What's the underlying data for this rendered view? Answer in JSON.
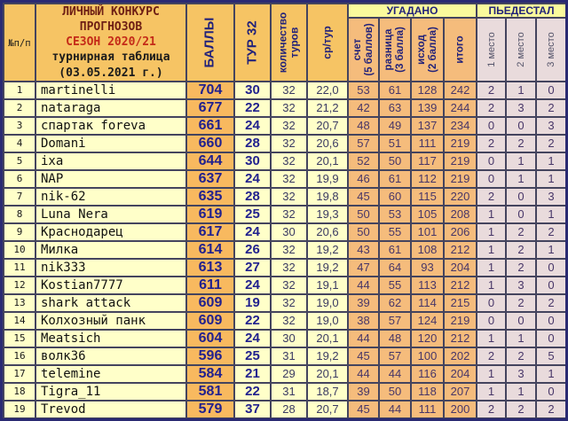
{
  "header": {
    "corner": "№п/п",
    "title_main": "ЛИЧНЫЙ КОНКУРС\nПРОГНОЗОВ",
    "season": "СЕЗОН 2020/21",
    "subtitle": "турнирная таблица",
    "date": "(03.05.2021 г.)",
    "points": "БАЛЛЫ",
    "tour": "ТУР 32",
    "tours_count": "количество\nтуров",
    "avg": "ср/тур",
    "guessed_group": "УГАДАНО",
    "podium_group": "ПЬЕДЕСТАЛ",
    "score": "счет\n(5 баллов)",
    "diff": "разница\n(3 балла)",
    "outcome": "исход\n(2 балла)",
    "total": "итого",
    "place1": "1 место",
    "place2": "2 место",
    "place3": "3 место"
  },
  "colors": {
    "header_orange": "#F6C464",
    "pale_yellow": "#FFFFC9",
    "points_orange": "#F8B95F",
    "guessed_peach": "#F5BC7C",
    "podium_mauve": "#E9DBDC",
    "group_yellow": "#FAFA9C",
    "navy_text": "#22227A",
    "data_purple": "#473668",
    "season_red": "#C42A18",
    "title_maroon": "#6E1F14",
    "grid": "#44445E",
    "outer_border": "#2A2A72"
  },
  "chart_data": {
    "type": "table",
    "title": "ЛИЧНЫЙ КОНКУРС ПРОГНОЗОВ — СЕЗОН 2020/21 — турнирная таблица (03.05.2021 г.)",
    "columns": [
      "№п/п",
      "ЛИЧНЫЙ КОНКУРС ПРОГНОЗОВ",
      "БАЛЛЫ",
      "ТУР 32",
      "количество туров",
      "ср/тур",
      "счет (5 баллов)",
      "разница (3 балла)",
      "исход (2 балла)",
      "итого",
      "1 место",
      "2 место",
      "3 место"
    ],
    "rows": [
      [
        1,
        "martinelli",
        704,
        30,
        32,
        "22,0",
        53,
        61,
        128,
        242,
        2,
        1,
        0
      ],
      [
        2,
        "nataraga",
        677,
        22,
        32,
        "21,2",
        42,
        63,
        139,
        244,
        2,
        3,
        2
      ],
      [
        3,
        "спартак foreva",
        661,
        24,
        32,
        "20,7",
        48,
        49,
        137,
        234,
        0,
        0,
        3
      ],
      [
        4,
        "Domani",
        660,
        28,
        32,
        "20,6",
        57,
        51,
        111,
        219,
        2,
        2,
        2
      ],
      [
        5,
        "ixa",
        644,
        30,
        32,
        "20,1",
        52,
        50,
        117,
        219,
        0,
        1,
        1
      ],
      [
        6,
        "NAP",
        637,
        24,
        32,
        "19,9",
        46,
        61,
        112,
        219,
        0,
        1,
        1
      ],
      [
        7,
        "nik-62",
        635,
        28,
        32,
        "19,8",
        45,
        60,
        115,
        220,
        2,
        0,
        3
      ],
      [
        8,
        "Luna Nera",
        619,
        25,
        32,
        "19,3",
        50,
        53,
        105,
        208,
        1,
        0,
        1
      ],
      [
        9,
        "Краснодарец",
        617,
        24,
        30,
        "20,6",
        50,
        55,
        101,
        206,
        1,
        2,
        2
      ],
      [
        10,
        "Милка",
        614,
        26,
        32,
        "19,2",
        43,
        61,
        108,
        212,
        1,
        2,
        1
      ],
      [
        11,
        "nik333",
        613,
        27,
        32,
        "19,2",
        47,
        64,
        93,
        204,
        1,
        2,
        0
      ],
      [
        12,
        "Kostian7777",
        611,
        24,
        32,
        "19,1",
        44,
        55,
        113,
        212,
        1,
        3,
        0
      ],
      [
        13,
        "shark attack",
        609,
        19,
        32,
        "19,0",
        39,
        62,
        114,
        215,
        0,
        2,
        2
      ],
      [
        14,
        "Колхозный панк",
        609,
        22,
        32,
        "19,0",
        38,
        57,
        124,
        219,
        0,
        0,
        0
      ],
      [
        15,
        "Meatsich",
        604,
        24,
        30,
        "20,1",
        44,
        48,
        120,
        212,
        1,
        1,
        0
      ],
      [
        16,
        "волк36",
        596,
        25,
        31,
        "19,2",
        45,
        57,
        100,
        202,
        2,
        2,
        5
      ],
      [
        17,
        "telemine",
        584,
        21,
        29,
        "20,1",
        44,
        44,
        116,
        204,
        1,
        3,
        1
      ],
      [
        18,
        "Tigra_11",
        581,
        22,
        31,
        "18,7",
        39,
        50,
        118,
        207,
        1,
        1,
        0
      ],
      [
        19,
        "Trevod",
        579,
        37,
        28,
        "20,7",
        45,
        44,
        111,
        200,
        2,
        2,
        2
      ]
    ]
  }
}
